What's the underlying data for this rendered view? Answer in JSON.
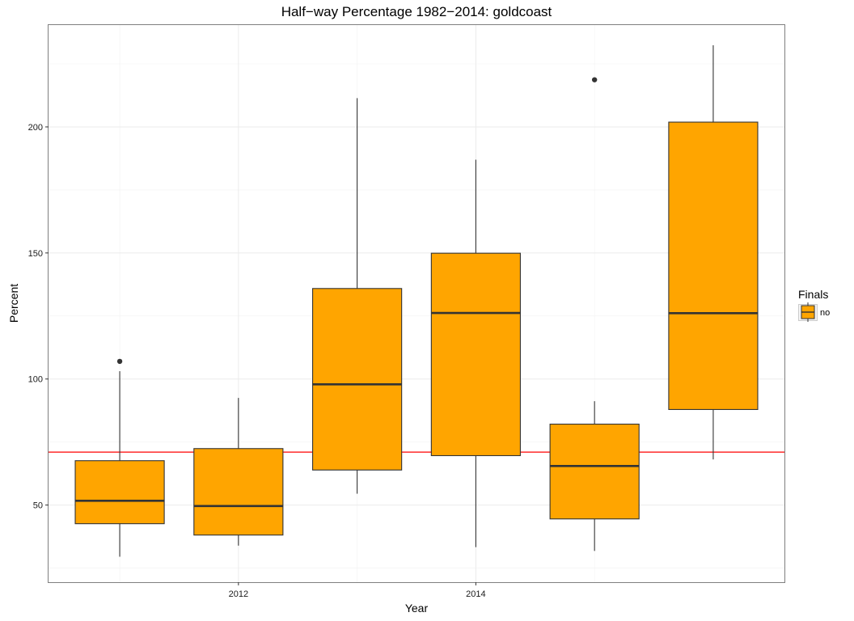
{
  "chart_data": {
    "type": "boxplot",
    "title": "Half−way Percentage 1982−2014: goldcoast",
    "xlabel": "Year",
    "ylabel": "Percent",
    "xlim": [
      2010.4,
      2016.6
    ],
    "ylim": [
      19.4,
      240.4
    ],
    "x_ticks": [
      {
        "value": 2012,
        "label": "2012"
      },
      {
        "value": 2014,
        "label": "2014"
      }
    ],
    "y_ticks": [
      {
        "value": 50,
        "label": "50"
      },
      {
        "value": 100,
        "label": "100"
      },
      {
        "value": 150,
        "label": "150"
      },
      {
        "value": 200,
        "label": "200"
      }
    ],
    "grid": true,
    "reference_line": {
      "y": 71,
      "color": "#ff0000"
    },
    "box_fill": "#ffa500",
    "box_stroke": "#333333",
    "box_width_years": 0.75,
    "legend": {
      "title": "Finals",
      "position": "right",
      "items": [
        {
          "label": "no",
          "color": "#ffa500"
        }
      ]
    },
    "boxes": [
      {
        "x": 2011,
        "min": 29.5,
        "q1": 42.6,
        "median": 51.7,
        "q3": 67.6,
        "max": 103.1,
        "outliers": [
          107
        ]
      },
      {
        "x": 2012,
        "min": 33.9,
        "q1": 38.1,
        "median": 49.6,
        "q3": 72.4,
        "max": 92.5,
        "outliers": []
      },
      {
        "x": 2013,
        "min": 54.5,
        "q1": 63.9,
        "median": 97.9,
        "q3": 135.9,
        "max": 211.4,
        "outliers": []
      },
      {
        "x": 2014,
        "min": 33.3,
        "q1": 69.6,
        "median": 126.2,
        "q3": 149.9,
        "max": 187.0,
        "outliers": []
      },
      {
        "x": 2015,
        "min": 31.8,
        "q1": 44.5,
        "median": 65.5,
        "q3": 82.1,
        "max": 91.2,
        "outliers": [
          218.7
        ]
      },
      {
        "x": 2016,
        "min": 68.1,
        "q1": 87.9,
        "median": 126.1,
        "q3": 201.9,
        "max": 232.4,
        "outliers": []
      }
    ]
  }
}
